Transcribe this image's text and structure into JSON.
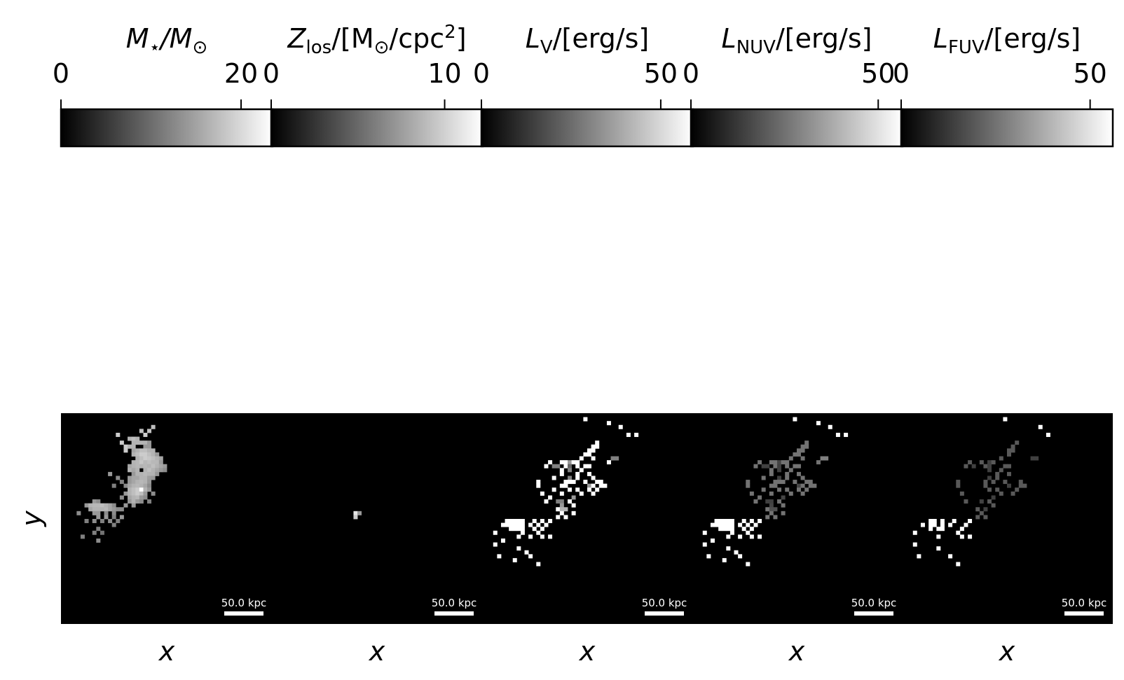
{
  "chart_data": {
    "type": "heatmap",
    "grid": false,
    "panels": [
      {
        "quantity": "stellar mass",
        "colorbar": {
          "title": {
            "main": "M",
            "main_italic": true,
            "sub": "⋆",
            "rest": "/M",
            "rest_italic": true,
            "rest_sub": "⊙",
            "tail": "",
            "sup": ""
          },
          "range": [
            0,
            23.5
          ],
          "ticks": [
            0,
            20
          ],
          "tick_labels": [
            "0",
            "20"
          ],
          "colormap": "gray"
        },
        "xlabel": "x",
        "ylabel": "y",
        "scalebar_label": "50.0 kpc"
      },
      {
        "quantity": "line-of-sight metal surface density",
        "colorbar": {
          "title": {
            "main": "Z",
            "main_italic": true,
            "sub": "los",
            "rest": "/[M",
            "rest_italic": false,
            "rest_sub": "⊙",
            "tail": "/cpc",
            "sup": "2"
          },
          "range": [
            0,
            12.2
          ],
          "ticks": [
            0,
            10
          ],
          "tick_labels": [
            "0",
            "10"
          ],
          "colormap": "gray"
        },
        "xlabel": "x",
        "ylabel": "",
        "scalebar_label": "50.0 kpc"
      },
      {
        "quantity": "V-band luminosity",
        "colorbar": {
          "title": {
            "main": "L",
            "main_italic": true,
            "sub": "V",
            "rest": "/[erg/s]",
            "rest_italic": false,
            "rest_sub": "",
            "tail": "",
            "sup": ""
          },
          "range": [
            0,
            59
          ],
          "ticks": [
            0,
            50
          ],
          "tick_labels": [
            "0",
            "50"
          ],
          "colormap": "gray"
        },
        "xlabel": "x",
        "ylabel": "",
        "scalebar_label": "50.0 kpc"
      },
      {
        "quantity": "NUV luminosity",
        "colorbar": {
          "title": {
            "main": "L",
            "main_italic": true,
            "sub": "NUV",
            "rest": "/[erg/s]",
            "rest_italic": false,
            "rest_sub": "",
            "tail": "",
            "sup": ""
          },
          "range": [
            0,
            56.5
          ],
          "ticks": [
            0,
            50
          ],
          "tick_labels": [
            "0",
            "50"
          ],
          "colormap": "gray"
        },
        "xlabel": "x",
        "ylabel": "",
        "scalebar_label": "50.0 kpc"
      },
      {
        "quantity": "FUV luminosity",
        "colorbar": {
          "title": {
            "main": "L",
            "main_italic": true,
            "sub": "FUV",
            "rest": "/[erg/s]",
            "rest_italic": false,
            "rest_sub": "",
            "tail": "",
            "sup": ""
          },
          "range": [
            0,
            56
          ],
          "ticks": [
            0,
            50
          ],
          "tick_labels": [
            "0",
            "50"
          ],
          "colormap": "gray"
        },
        "xlabel": "x",
        "ylabel": "",
        "scalebar_label": "50.0 kpc"
      }
    ],
    "image_description_values": {
      "grid_cells": 54,
      "stellar_mass_cells": [
        [
          5,
          14,
          0.8
        ],
        [
          7,
          15,
          0.8
        ],
        [
          8,
          16,
          0.8
        ],
        [
          9,
          16,
          0.8
        ],
        [
          4,
          20,
          0.75
        ],
        [
          5,
          21,
          0.8
        ],
        [
          4,
          22,
          0.75
        ],
        [
          3,
          23,
          0.75
        ],
        [
          6,
          17,
          0.7
        ],
        [
          6,
          18,
          0.75
        ],
        [
          6,
          19,
          0.7
        ],
        [
          7,
          20,
          0.7
        ],
        [
          7,
          18,
          0.7
        ],
        [
          8,
          18,
          0.7
        ],
        [
          8,
          17,
          0.7
        ],
        [
          7,
          19,
          0.7
        ],
        [
          7,
          21,
          0.7
        ],
        [
          7,
          22,
          0.6
        ],
        [
          8,
          21,
          0.6
        ],
        [
          8,
          22,
          0.6
        ],
        [
          9,
          18,
          0.65
        ],
        [
          9,
          19,
          0.7
        ],
        [
          9,
          20,
          0.75
        ],
        [
          9,
          21,
          0.75
        ],
        [
          9,
          22,
          0.7
        ],
        [
          9,
          23,
          0.7
        ],
        [
          10,
          18,
          0.7
        ],
        [
          10,
          19,
          0.75
        ],
        [
          10,
          20,
          0.8
        ],
        [
          10,
          21,
          0.8
        ],
        [
          10,
          22,
          0.75
        ],
        [
          10,
          23,
          0.7
        ],
        [
          10,
          24,
          0.6
        ],
        [
          11,
          19,
          0.7
        ],
        [
          11,
          20,
          0.75
        ],
        [
          11,
          21,
          0.8
        ],
        [
          11,
          22,
          0.78
        ],
        [
          11,
          23,
          0.75
        ],
        [
          11,
          24,
          0.7
        ],
        [
          11,
          25,
          0.65
        ],
        [
          12,
          18,
          0.7
        ],
        [
          12,
          19,
          0.72
        ],
        [
          12,
          20,
          0.78
        ],
        [
          12,
          21,
          0.72
        ],
        [
          12,
          22,
          0.75
        ],
        [
          12,
          23,
          0.72
        ],
        [
          12,
          24,
          0.72
        ],
        [
          12,
          25,
          0.6
        ],
        [
          13,
          17,
          0.65
        ],
        [
          13,
          18,
          0.7
        ],
        [
          13,
          19,
          0.72
        ],
        [
          13,
          20,
          0.7
        ],
        [
          13,
          21,
          0.72
        ],
        [
          13,
          22,
          0.7
        ],
        [
          13,
          23,
          0.75
        ],
        [
          13,
          24,
          0.7
        ],
        [
          13,
          25,
          0.65
        ],
        [
          13,
          26,
          0.6
        ],
        [
          14,
          17,
          0.7
        ],
        [
          14,
          18,
          0.65
        ],
        [
          14,
          19,
          0.7
        ],
        [
          14,
          21,
          0.7
        ],
        [
          14,
          22,
          0.75
        ],
        [
          14,
          23,
          0.7
        ],
        [
          14,
          24,
          0.65
        ],
        [
          14,
          25,
          0.6
        ],
        [
          14,
          26,
          0.55
        ],
        [
          15,
          12,
          0.6
        ],
        [
          15,
          18,
          0.6
        ],
        [
          15,
          19,
          0.7
        ],
        [
          15,
          20,
          0.7
        ],
        [
          15,
          21,
          0.72
        ],
        [
          15,
          22,
          0.7
        ],
        [
          15,
          23,
          0.7
        ],
        [
          15,
          24,
          0.6
        ],
        [
          16,
          14,
          0.55
        ],
        [
          16,
          17,
          0.6
        ],
        [
          16,
          18,
          0.65
        ],
        [
          16,
          19,
          0.65
        ],
        [
          16,
          20,
          0.7
        ],
        [
          16,
          21,
          0.7
        ],
        [
          16,
          22,
          0.62
        ],
        [
          16,
          23,
          0.6
        ],
        [
          17,
          15,
          0.5
        ],
        [
          17,
          17,
          0.6
        ],
        [
          17,
          18,
          0.65
        ],
        [
          17,
          19,
          0.7
        ],
        [
          17,
          20,
          0.72
        ],
        [
          17,
          21,
          0.7
        ],
        [
          17,
          22,
          0.6
        ],
        [
          18,
          13,
          0.5
        ],
        [
          18,
          16,
          0.55
        ],
        [
          18,
          17,
          0.65
        ],
        [
          18,
          18,
          0.7
        ],
        [
          18,
          19,
          0.72
        ],
        [
          18,
          20,
          0.7
        ],
        [
          18,
          21,
          0.65
        ],
        [
          18,
          22,
          0.55
        ],
        [
          19,
          17,
          0.7
        ],
        [
          19,
          18,
          0.75
        ],
        [
          19,
          19,
          0.8
        ],
        [
          19,
          20,
          1.0
        ],
        [
          19,
          21,
          0.7
        ],
        [
          19,
          22,
          0.6
        ],
        [
          20,
          16,
          0.6
        ],
        [
          20,
          17,
          0.7
        ],
        [
          20,
          18,
          0.75
        ],
        [
          20,
          19,
          0.8
        ],
        [
          20,
          20,
          0.75
        ],
        [
          20,
          21,
          0.6
        ],
        [
          20,
          23,
          0.55
        ],
        [
          21,
          15,
          0.55
        ],
        [
          21,
          17,
          0.65
        ],
        [
          21,
          18,
          0.7
        ],
        [
          21,
          19,
          0.72
        ],
        [
          21,
          20,
          0.6
        ],
        [
          21,
          21,
          0.55
        ],
        [
          22,
          8,
          0.6
        ],
        [
          22,
          9,
          0.55
        ],
        [
          22,
          17,
          0.6
        ],
        [
          22,
          18,
          0.7
        ],
        [
          22,
          19,
          0.6
        ],
        [
          22,
          20,
          0.55
        ],
        [
          22,
          22,
          0.5
        ],
        [
          23,
          6,
          0.6
        ],
        [
          23,
          7,
          0.7
        ],
        [
          23,
          8,
          0.72
        ],
        [
          23,
          9,
          0.72
        ],
        [
          23,
          10,
          0.75
        ],
        [
          23,
          11,
          0.7
        ],
        [
          23,
          12,
          0.65
        ],
        [
          23,
          13,
          0.55
        ],
        [
          23,
          16,
          0.6
        ],
        [
          23,
          18,
          0.6
        ],
        [
          24,
          7,
          0.65
        ],
        [
          24,
          8,
          0.7
        ],
        [
          24,
          9,
          0.7
        ],
        [
          24,
          10,
          0.7
        ],
        [
          24,
          11,
          0.72
        ],
        [
          24,
          12,
          0.65
        ],
        [
          24,
          13,
          0.6
        ],
        [
          24,
          14,
          0.55
        ],
        [
          24,
          15,
          0.55
        ],
        [
          25,
          4,
          0.55
        ],
        [
          25,
          8,
          0.6
        ],
        [
          25,
          9,
          0.6
        ],
        [
          25,
          11,
          0.55
        ],
        [
          25,
          13,
          0.55
        ],
        [
          26,
          9,
          0.6
        ],
        [
          26,
          11,
          0.6
        ],
        [
          26,
          13,
          0.5
        ],
        [
          26,
          15,
          0.6
        ],
        [
          27,
          6,
          0.5
        ],
        [
          27,
          8,
          0.55
        ],
        [
          27,
          10,
          0.5
        ],
        [
          27,
          12,
          0.55
        ],
        [
          27,
          14,
          0.5
        ],
        [
          28,
          13,
          0.5
        ],
        [
          29,
          9,
          0.5
        ],
        [
          30,
          8,
          0.5
        ],
        [
          30,
          10,
          0.45
        ],
        [
          31,
          5,
          0.5
        ],
        [
          32,
          9,
          0.55
        ]
      ]
    }
  }
}
